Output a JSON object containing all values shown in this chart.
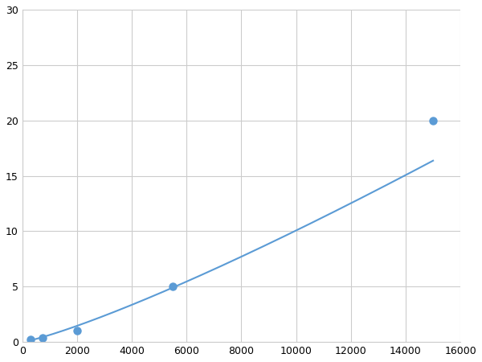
{
  "x": [
    300,
    750,
    2000,
    5500,
    15000
  ],
  "y": [
    0.2,
    0.4,
    1.0,
    5.0,
    20.0
  ],
  "line_color": "#5b9bd5",
  "marker_color": "#5b9bd5",
  "marker_size": 6,
  "line_width": 1.5,
  "xlim": [
    0,
    16000
  ],
  "ylim": [
    0,
    30
  ],
  "xticks": [
    0,
    2000,
    4000,
    6000,
    8000,
    10000,
    12000,
    14000,
    16000
  ],
  "yticks": [
    0,
    5,
    10,
    15,
    20,
    25,
    30
  ],
  "grid_color": "#cccccc",
  "background_color": "#ffffff",
  "tick_fontsize": 9
}
